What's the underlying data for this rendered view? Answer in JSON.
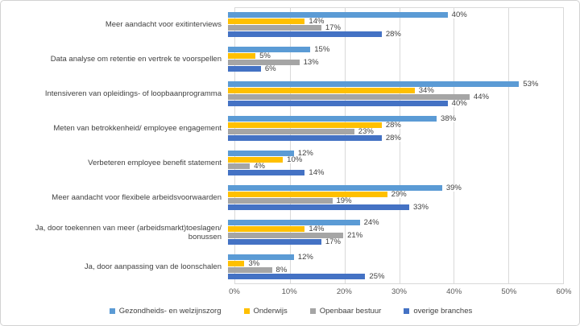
{
  "chart_data": {
    "type": "bar",
    "orientation": "horizontal",
    "title": "",
    "xlabel": "",
    "ylabel": "",
    "xlim": [
      0,
      60
    ],
    "grid": true,
    "legend_position": "bottom",
    "x_ticks": [
      "0%",
      "10%",
      "20%",
      "30%",
      "40%",
      "50%",
      "60%"
    ],
    "x_tick_values": [
      0,
      10,
      20,
      30,
      40,
      50,
      60
    ],
    "categories": [
      "Meer aandacht voor exitinterviews",
      "Data analyse om retentie en vertrek te voorspellen",
      "Intensiveren van opleidings- of loopbaanprogramma",
      "Meten van betrokkenheid/ employee engagement",
      "Verbeteren employee benefit statement",
      "Meer aandacht voor flexibele arbeidsvoorwaarden",
      "Ja, door toekennen van meer (arbeidsmarkt)toeslagen/ bonussen",
      "Ja, door aanpassing van de loonschalen"
    ],
    "series": [
      {
        "name": "Gezondheids- en welzijnszorg",
        "color": "#5B9BD5",
        "values": [
          40,
          15,
          53,
          38,
          12,
          39,
          24,
          12
        ],
        "labels": [
          "40%",
          "15%",
          "53%",
          "38%",
          "12%",
          "39%",
          "24%",
          "12%"
        ]
      },
      {
        "name": "Onderwijs",
        "color": "#FFC000",
        "values": [
          14,
          5,
          34,
          28,
          10,
          29,
          14,
          3
        ],
        "labels": [
          "14%",
          "5%",
          "34%",
          "28%",
          "10%",
          "29%",
          "14%",
          "3%"
        ]
      },
      {
        "name": "Openbaar bestuur",
        "color": "#A5A5A5",
        "values": [
          17,
          13,
          44,
          23,
          4,
          19,
          21,
          8
        ],
        "labels": [
          "17%",
          "13%",
          "44%",
          "23%",
          "4%",
          "19%",
          "21%",
          "8%"
        ]
      },
      {
        "name": "overige branches",
        "color": "#4472C4",
        "values": [
          28,
          6,
          40,
          28,
          14,
          33,
          17,
          25
        ],
        "labels": [
          "28%",
          "6%",
          "40%",
          "28%",
          "14%",
          "33%",
          "17%",
          "25%"
        ]
      }
    ],
    "colors": {
      "gridline": "#d9d9d9",
      "plot_border": "#d9d9d9",
      "category_text": "#404040",
      "value_text": "#404040",
      "axis_text": "#595959",
      "legend_text": "#404040",
      "background": "#ffffff"
    }
  }
}
